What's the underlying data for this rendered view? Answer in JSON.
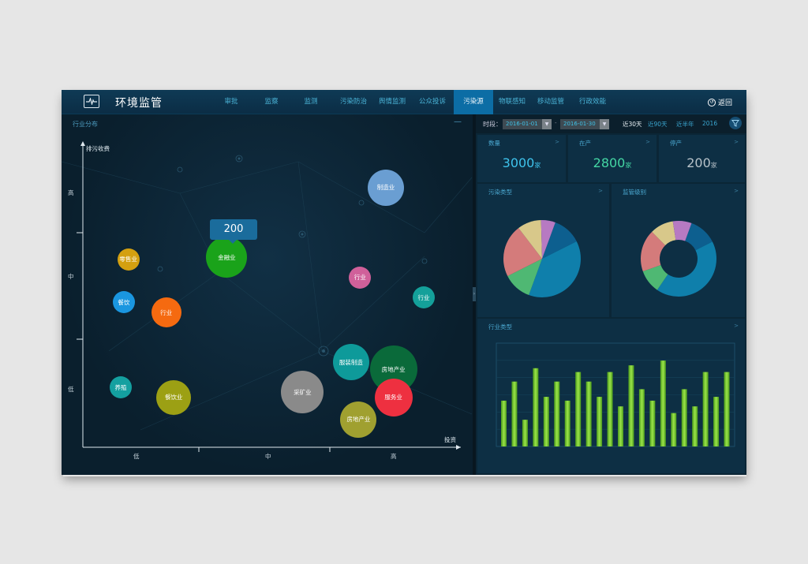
{
  "header": {
    "title": "环境监管",
    "nav": [
      "审批",
      "监察",
      "监测",
      "污染防治",
      "舆情监测",
      "公众投诉",
      "污染源",
      "物联感知",
      "移动监管",
      "行政效能"
    ],
    "active_index": 6,
    "back_label": "返回"
  },
  "left_panel": {
    "title": "行业分布",
    "minimize_label": "—",
    "tooltip_value": "200",
    "chart_data": {
      "type": "scatter",
      "ylabel": "排污收费",
      "xlabel": "投资",
      "x_ticks": [
        "低",
        "中",
        "高"
      ],
      "y_ticks": [
        "高",
        "中",
        "低"
      ],
      "points": [
        {
          "label": "制造业",
          "x": 2.0,
          "y": 2.6,
          "size": 46,
          "color": "#6a9ed2"
        },
        {
          "label": "金融业",
          "x": 0.95,
          "y": 1.9,
          "size": 52,
          "color": "#1aa31a"
        },
        {
          "label": "零售业",
          "x": 0.3,
          "y": 1.88,
          "size": 28,
          "color": "#d4a010"
        },
        {
          "label": "行业",
          "x": 1.83,
          "y": 1.7,
          "size": 28,
          "color": "#d0609a"
        },
        {
          "label": "行业",
          "x": 2.25,
          "y": 1.5,
          "size": 28,
          "color": "#14a09a"
        },
        {
          "label": "餐饮",
          "x": 0.27,
          "y": 1.45,
          "size": 28,
          "color": "#1a96e0"
        },
        {
          "label": "行业",
          "x": 0.55,
          "y": 1.35,
          "size": 38,
          "color": "#f56a10"
        },
        {
          "label": "服装制造",
          "x": 1.77,
          "y": 0.85,
          "size": 46,
          "color": "#0e9a9a"
        },
        {
          "label": "房地产业",
          "x": 2.05,
          "y": 0.78,
          "size": 60,
          "color": "#0a6a3a"
        },
        {
          "label": "养殖",
          "x": 0.25,
          "y": 0.6,
          "size": 28,
          "color": "#14a0a0"
        },
        {
          "label": "餐饮业",
          "x": 0.6,
          "y": 0.5,
          "size": 44,
          "color": "#9ca014"
        },
        {
          "label": "采矿业",
          "x": 1.45,
          "y": 0.55,
          "size": 54,
          "color": "#8a8a8a"
        },
        {
          "label": "服务业",
          "x": 2.05,
          "y": 0.5,
          "size": 48,
          "color": "#ee3040"
        },
        {
          "label": "房地产业",
          "x": 1.82,
          "y": 0.28,
          "size": 46,
          "color": "#a0a030"
        }
      ]
    }
  },
  "filter": {
    "label": "时段：",
    "start_date": "2016-01-01",
    "end_date": "2016-01-30",
    "separator": "-",
    "quick_ranges": [
      "近30天",
      "近90天",
      "近半年",
      "2016"
    ],
    "active_quick": 0
  },
  "stats": [
    {
      "label": "数量",
      "value": "3000",
      "unit": "家",
      "color": "#3ec3ec"
    },
    {
      "label": "在产",
      "value": "2800",
      "unit": "家",
      "color": "#44d6a4"
    },
    {
      "label": "停产",
      "value": "200",
      "unit": "家",
      "color": "#b7c2c9"
    }
  ],
  "pollution_type": {
    "title": "污染类型",
    "chart_data": {
      "type": "pie",
      "slices": [
        {
          "value": 12,
          "color": "#0d5f8f"
        },
        {
          "value": 38,
          "color": "#0f7fab"
        },
        {
          "value": 12,
          "color": "#4fb873"
        },
        {
          "value": 22,
          "color": "#d47b7b"
        },
        {
          "value": 10,
          "color": "#d8c88a"
        },
        {
          "value": 6,
          "color": "#b77ac2"
        }
      ]
    }
  },
  "supervision_level": {
    "title": "监管级别",
    "chart_data": {
      "type": "pie",
      "donut": true,
      "slices": [
        {
          "value": 12,
          "color": "#0d5f8f"
        },
        {
          "value": 42,
          "color": "#0f7fab"
        },
        {
          "value": 10,
          "color": "#4fb873"
        },
        {
          "value": 18,
          "color": "#d47b7b"
        },
        {
          "value": 10,
          "color": "#d8c88a"
        },
        {
          "value": 8,
          "color": "#b77ac2"
        }
      ]
    }
  },
  "industry_type": {
    "title": "行业类型",
    "chart_data": {
      "type": "bar",
      "values": [
        48,
        68,
        28,
        82,
        52,
        68,
        48,
        78,
        68,
        52,
        78,
        42,
        85,
        60,
        48,
        90,
        35,
        60,
        42,
        78,
        52,
        78
      ],
      "ylim": [
        0,
        100
      ],
      "color": "#7fd12c"
    }
  },
  "arrow_glyph": ">"
}
